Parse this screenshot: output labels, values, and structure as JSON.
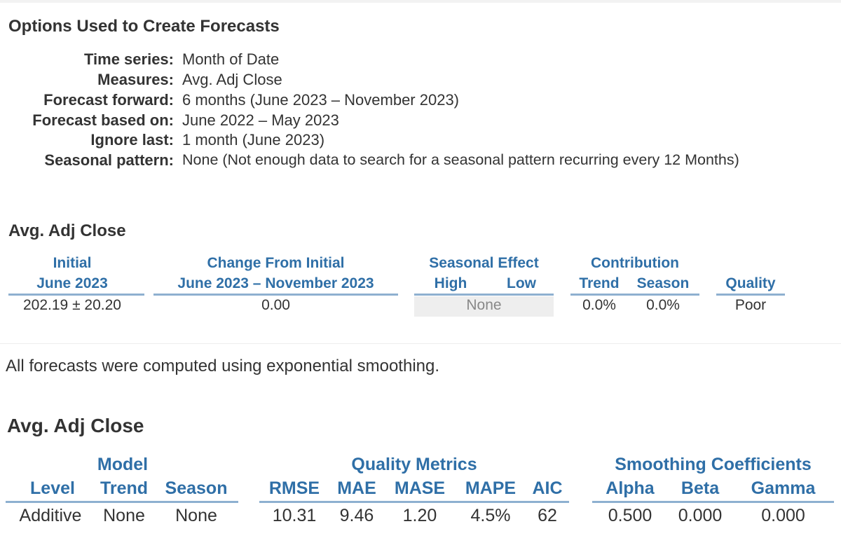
{
  "options": {
    "title": "Options Used to Create Forecasts",
    "rows": [
      {
        "label": "Time series:",
        "value": "Month of Date"
      },
      {
        "label": "Measures:",
        "value": "Avg. Adj Close"
      },
      {
        "label": "Forecast forward:",
        "value": "6 months (June 2023 – November 2023)"
      },
      {
        "label": "Forecast based on:",
        "value": "June 2022 – May 2023"
      },
      {
        "label": "Ignore last:",
        "value": "1 month (June 2023)"
      },
      {
        "label": "Seasonal pattern:",
        "value": "None (Not enough data to search for a seasonal pattern recurring every 12 Months)"
      }
    ]
  },
  "summary": {
    "title": "Avg. Adj Close",
    "headers": {
      "initial": "Initial",
      "initial_period": "June 2023",
      "change": "Change From Initial",
      "change_period": "June 2023 – November 2023",
      "seasonal": "Seasonal Effect",
      "high": "High",
      "low": "Low",
      "contribution": "Contribution",
      "trend": "Trend",
      "season": "Season",
      "quality": "Quality"
    },
    "row": {
      "initial": "202.19 ±  20.20",
      "change": "0.00",
      "seasonal": "None",
      "trend": "0.0%",
      "season": "0.0%",
      "quality": "Poor"
    }
  },
  "note": "All forecasts were computed using exponential smoothing.",
  "model": {
    "title": "Avg. Adj Close",
    "groups": {
      "model": "Model",
      "quality": "Quality Metrics",
      "smoothing": "Smoothing Coefficients"
    },
    "headers": {
      "level": "Level",
      "trend": "Trend",
      "season": "Season",
      "rmse": "RMSE",
      "mae": "MAE",
      "mase": "MASE",
      "mape": "MAPE",
      "aic": "AIC",
      "alpha": "Alpha",
      "beta": "Beta",
      "gamma": "Gamma"
    },
    "row": {
      "level": "Additive",
      "trend": "None",
      "season": "None",
      "rmse": "10.31",
      "mae": "9.46",
      "mase": "1.20",
      "mape": "4.5%",
      "aic": "62",
      "alpha": "0.500",
      "beta": "0.000",
      "gamma": "0.000"
    }
  }
}
